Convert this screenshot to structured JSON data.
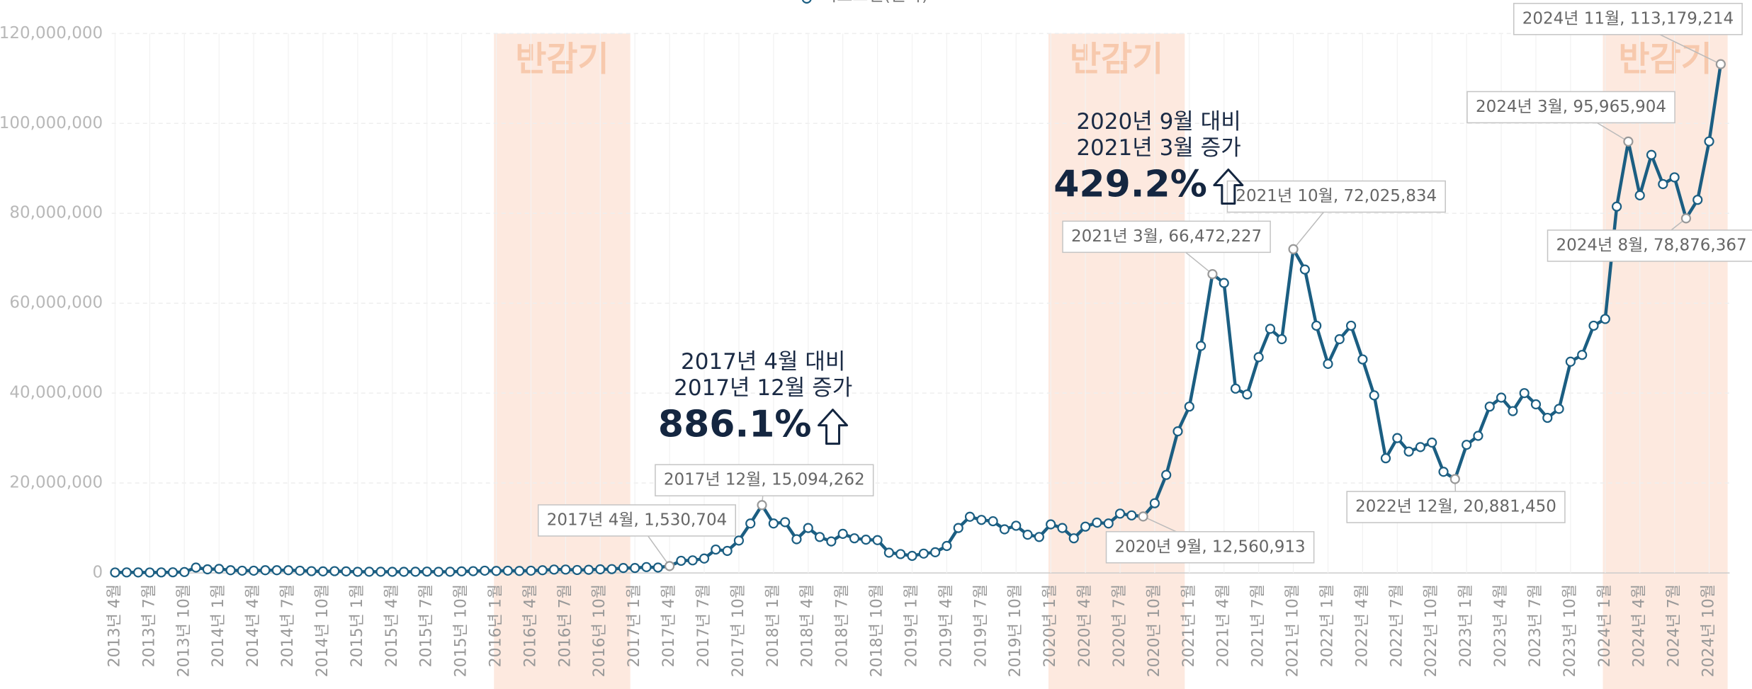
{
  "chart_data": {
    "type": "line",
    "series": [
      {
        "name": "비트코인(원화)",
        "color": "#1b5e82",
        "values": [
          100000,
          120000,
          110000,
          100000,
          120000,
          140000,
          200000,
          1200000,
          800000,
          900000,
          600000,
          500000,
          500000,
          600000,
          600000,
          600000,
          500000,
          400000,
          350000,
          400000,
          350000,
          250000,
          270000,
          270000,
          250000,
          250000,
          270000,
          300000,
          250000,
          270000,
          350000,
          400000,
          500000,
          450000,
          500000,
          450000,
          500000,
          600000,
          750000,
          750000,
          650000,
          700000,
          800000,
          850000,
          1100000,
          1100000,
          1300000,
          1200000,
          1530704,
          2700000,
          2800000,
          3200000,
          5200000,
          4900000,
          7200000,
          11000000,
          15094262,
          11000000,
          11300000,
          7500000,
          10000000,
          8000000,
          7000000,
          8700000,
          7700000,
          7400000,
          7300000,
          4500000,
          4200000,
          3800000,
          4300000,
          4600000,
          6000000,
          10000000,
          12500000,
          11800000,
          11500000,
          9700000,
          10500000,
          8500000,
          8000000,
          10800000,
          10000000,
          7700000,
          10300000,
          11200000,
          11000000,
          13200000,
          12800000,
          12560913,
          15500000,
          21800000,
          31500000,
          37000000,
          50500000,
          66472227,
          64500000,
          41000000,
          39700000,
          48000000,
          54300000,
          52000000,
          72025834,
          67500000,
          55000000,
          46500000,
          52000000,
          55000000,
          47500000,
          39500000,
          25500000,
          30000000,
          27000000,
          28000000,
          29000000,
          22500000,
          20881450,
          28500000,
          30500000,
          37000000,
          39000000,
          36000000,
          40000000,
          37500000,
          34500000,
          36500000,
          47000000,
          48500000,
          55000000,
          56500000,
          81500000,
          95965904,
          84000000,
          93000000,
          86500000,
          88000000,
          78876367,
          83000000,
          96000000,
          113179214
        ],
        "value_labels": [
          null,
          null,
          null,
          null,
          null,
          null,
          null,
          null,
          null,
          null,
          null,
          null,
          null,
          null,
          null,
          null,
          null,
          null,
          null,
          null,
          null,
          null,
          null,
          null,
          null,
          null,
          null,
          null,
          null,
          null,
          null,
          null,
          null,
          null,
          null,
          null,
          null,
          null,
          null,
          null,
          null,
          null,
          null,
          null,
          null,
          null,
          null,
          null,
          "2017년 4월, 1,530,704",
          null,
          null,
          null,
          null,
          null,
          null,
          null,
          "2017년 12월, 15,094,262",
          null,
          null,
          null,
          null,
          null,
          null,
          null,
          null,
          null,
          null,
          null,
          null,
          null,
          null,
          null,
          null,
          null,
          null,
          null,
          null,
          null,
          null,
          null,
          null,
          null,
          null,
          null,
          null,
          null,
          null,
          null,
          null,
          "2020년 9월, 12,560,913",
          null,
          null,
          null,
          null,
          null,
          "2021년 3월, 66,472,227",
          null,
          null,
          null,
          null,
          null,
          null,
          "2021년 10월, 72,025,834",
          null,
          null,
          null,
          null,
          null,
          null,
          null,
          null,
          null,
          null,
          null,
          null,
          null,
          "2022년 12월, 20,881,450",
          null,
          null,
          null,
          null,
          null,
          null,
          null,
          null,
          null,
          null,
          null,
          null,
          null,
          null,
          "2024년 3월, 95,965,904",
          null,
          null,
          null,
          null,
          "2024년 8월, 78,876,367",
          null,
          null,
          "2024년 11월, 113,179,214"
        ]
      }
    ],
    "categories": [
      "2013년 4월",
      null,
      null,
      "2013년 7월",
      null,
      null,
      "2013년 10월",
      null,
      null,
      "2014년 1월",
      null,
      null,
      "2014년 4월",
      null,
      null,
      "2014년 7월",
      null,
      null,
      "2014년 10월",
      null,
      null,
      "2015년 1월",
      null,
      null,
      "2015년 4월",
      null,
      null,
      "2015년 7월",
      null,
      null,
      "2015년 10월",
      null,
      null,
      "2016년 1월",
      null,
      null,
      "2016년 4월",
      null,
      null,
      "2016년 7월",
      null,
      null,
      "2016년 10월",
      null,
      null,
      "2017년 1월",
      null,
      null,
      "2017년 4월",
      null,
      null,
      "2017년 7월",
      null,
      null,
      "2017년 10월",
      null,
      null,
      "2018년 1월",
      null,
      null,
      "2018년 4월",
      null,
      null,
      "2018년 7월",
      null,
      null,
      "2018년 10월",
      null,
      null,
      "2019년 1월",
      null,
      null,
      "2019년 4월",
      null,
      null,
      "2019년 7월",
      null,
      null,
      "2019년 10월",
      null,
      null,
      "2020년 1월",
      null,
      null,
      "2020년 4월",
      null,
      null,
      "2020년 7월",
      null,
      null,
      "2020년 10월",
      null,
      null,
      "2021년 1월",
      null,
      null,
      "2021년 4월",
      null,
      null,
      "2021년 7월",
      null,
      null,
      "2021년 10월",
      null,
      null,
      "2022년 1월",
      null,
      null,
      "2022년 4월",
      null,
      null,
      "2022년 7월",
      null,
      null,
      "2022년 10월",
      null,
      null,
      "2023년 1월",
      null,
      null,
      "2023년 4월",
      null,
      null,
      "2023년 7월",
      null,
      null,
      "2023년 10월",
      null,
      null,
      "2024년 1월",
      null,
      null,
      "2024년 4월",
      null,
      null,
      "2024년 7월",
      null,
      null,
      "2024년 10월",
      null
    ],
    "ylim": [
      0,
      120000000
    ],
    "yticks": [
      0,
      {
        "value": 20000000,
        "label": "20,000,000"
      },
      {
        "value": 40000000,
        "label": "40,000,000"
      },
      {
        "value": 60000000,
        "label": "60,000,000"
      },
      {
        "value": 80000000,
        "label": "80,000,000"
      },
      {
        "value": 100000000,
        "label": "100,000,000"
      },
      {
        "value": 120000000,
        "label": "120,000,000"
      }
    ],
    "grid": true,
    "bands": [
      {
        "label": "반감기",
        "from": 33,
        "to": 44,
        "color": "#fde9df"
      },
      {
        "label": "반감기",
        "from": 81,
        "to": 92,
        "color": "#fde9df"
      },
      {
        "label": "반감기",
        "from": 129,
        "to": 139,
        "color": "#fde9df"
      }
    ],
    "annotations": [
      {
        "lines": [
          "2017년 4월 대비",
          "2017년 12월 증가"
        ],
        "highlight": "886.1%"
      },
      {
        "lines": [
          "2020년 9월 대비",
          "2021년 3월 증가"
        ],
        "highlight": "429.2%"
      }
    ]
  }
}
